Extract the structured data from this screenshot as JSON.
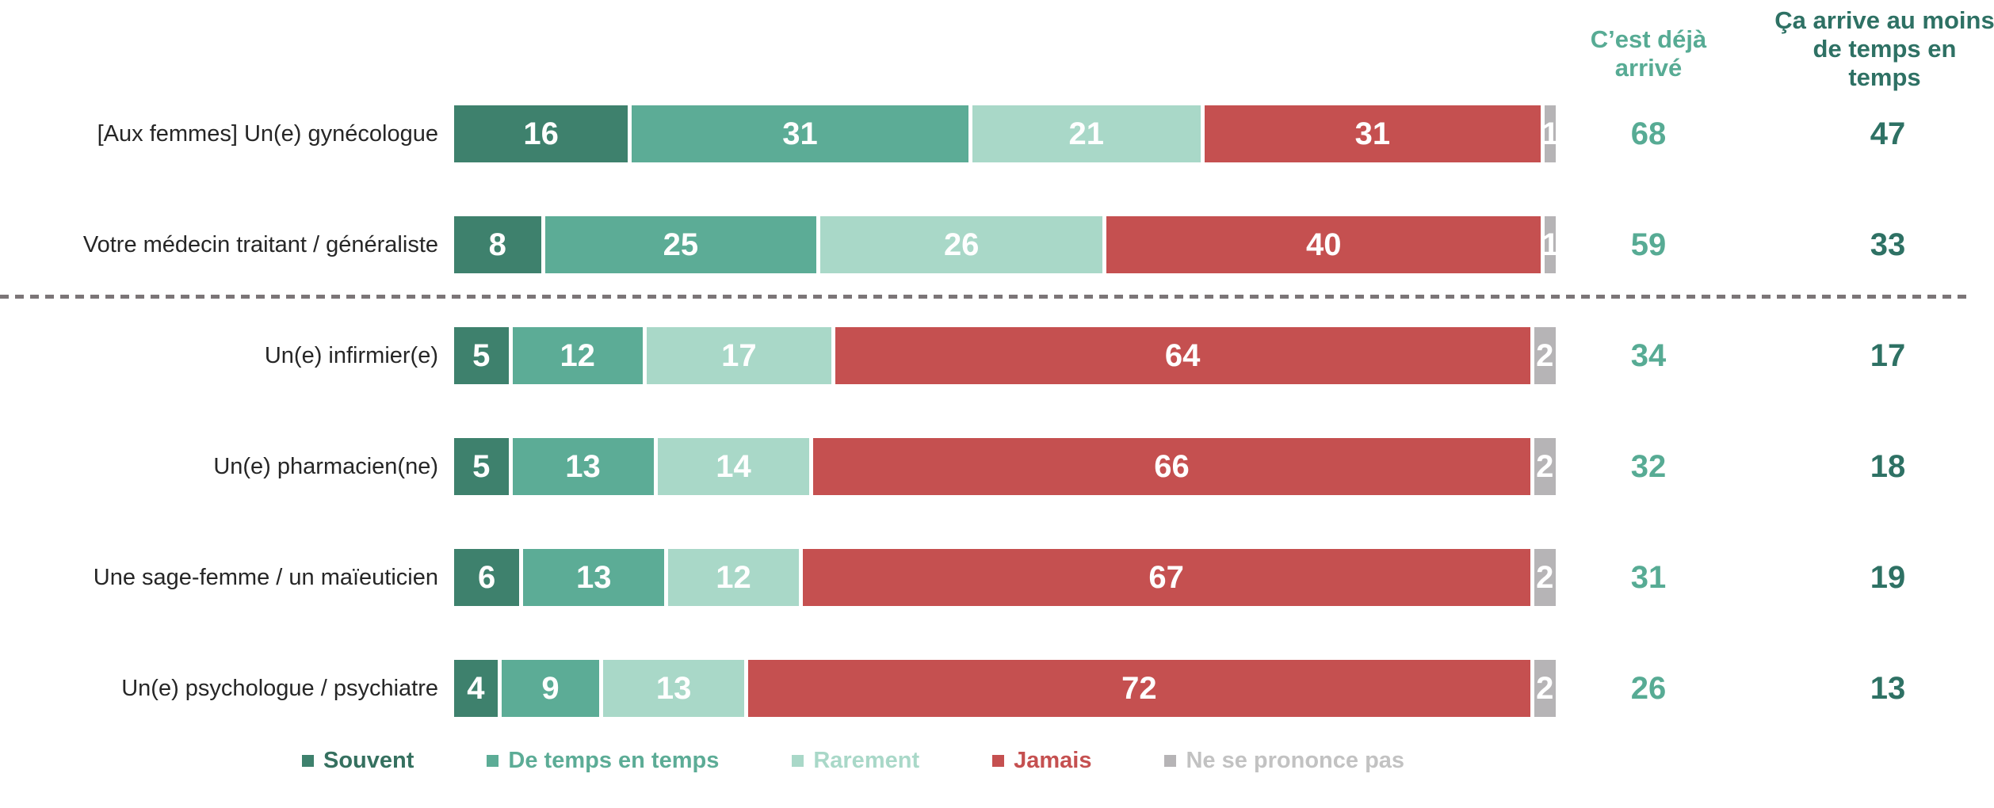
{
  "colors": {
    "souvent": "#3E816D",
    "de_temps_en_temps": "#5CAC96",
    "rarement": "#A9D8C8",
    "jamais": "#C55050",
    "ne_se_prononce_pas": "#B6B4B6",
    "col1_text": "#57AB94",
    "col2_text": "#2E7164",
    "row_label_text": "#262626",
    "bar_value_text": "#FFFFFF",
    "divider": "#7B7577",
    "legend_souvent_text": "#35705F",
    "legend_nsp_text": "#C2C2C2"
  },
  "columns": {
    "col1_header": "C’est déjà arrivé",
    "col2_header": "Ça arrive au moins de temps en temps"
  },
  "legend": [
    {
      "label": "Souvent",
      "color": "#3E816D",
      "text_color": "#35705F"
    },
    {
      "label": "De temps en temps",
      "color": "#5CAC96",
      "text_color": "#5CAC96"
    },
    {
      "label": "Rarement",
      "color": "#A9D8C8",
      "text_color": "#A9D8C8"
    },
    {
      "label": "Jamais",
      "color": "#C55050",
      "text_color": "#C55050"
    },
    {
      "label": "Ne se prononce pas",
      "color": "#B6B4B6",
      "text_color": "#C2C2C2"
    }
  ],
  "rows": [
    {
      "label": "[Aux femmes] Un(e) gynécologue",
      "values": [
        16,
        31,
        21,
        31,
        1
      ],
      "col1": "68",
      "col2": "47"
    },
    {
      "label": "Votre médecin traitant / généraliste",
      "values": [
        8,
        25,
        26,
        40,
        1
      ],
      "col1": "59",
      "col2": "33"
    },
    {
      "label": "Un(e) infirmier(e)",
      "values": [
        5,
        12,
        17,
        64,
        2
      ],
      "col1": "34",
      "col2": "17"
    },
    {
      "label": "Un(e) pharmacien(ne)",
      "values": [
        5,
        13,
        14,
        66,
        2
      ],
      "col1": "32",
      "col2": "18"
    },
    {
      "label": "Une sage-femme / un maïeuticien",
      "values": [
        6,
        13,
        12,
        67,
        2
      ],
      "col1": "31",
      "col2": "19"
    },
    {
      "label": "Un(e) psychologue / psychiatre",
      "values": [
        4,
        9,
        13,
        72,
        2
      ],
      "col1": "26",
      "col2": "13"
    }
  ],
  "chart_data": {
    "type": "bar",
    "orientation": "horizontal",
    "stacked": true,
    "categories": [
      "[Aux femmes] Un(e) gynécologue",
      "Votre médecin traitant / généraliste",
      "Un(e) infirmier(e)",
      "Un(e) pharmacien(ne)",
      "Une sage-femme / un maïeuticien",
      "Un(e) psychologue / psychiatre"
    ],
    "series": [
      {
        "name": "Souvent",
        "values": [
          16,
          8,
          5,
          5,
          6,
          4
        ]
      },
      {
        "name": "De temps en temps",
        "values": [
          31,
          25,
          12,
          13,
          13,
          9
        ]
      },
      {
        "name": "Rarement",
        "values": [
          21,
          26,
          17,
          14,
          12,
          13
        ]
      },
      {
        "name": "Jamais",
        "values": [
          31,
          40,
          64,
          66,
          67,
          72
        ]
      },
      {
        "name": "Ne se prononce pas",
        "values": [
          1,
          1,
          2,
          2,
          2,
          2
        ]
      }
    ],
    "summary_columns": [
      {
        "name": "C’est déjà arrivé",
        "values": [
          68,
          59,
          34,
          32,
          31,
          26
        ]
      },
      {
        "name": "Ça arrive au moins de temps en temps",
        "values": [
          47,
          33,
          17,
          18,
          19,
          13
        ]
      }
    ],
    "xlim": [
      0,
      100
    ],
    "units": "percent",
    "grid": false,
    "legend_position": "bottom",
    "separator_after_category_index": 1,
    "title": ""
  }
}
